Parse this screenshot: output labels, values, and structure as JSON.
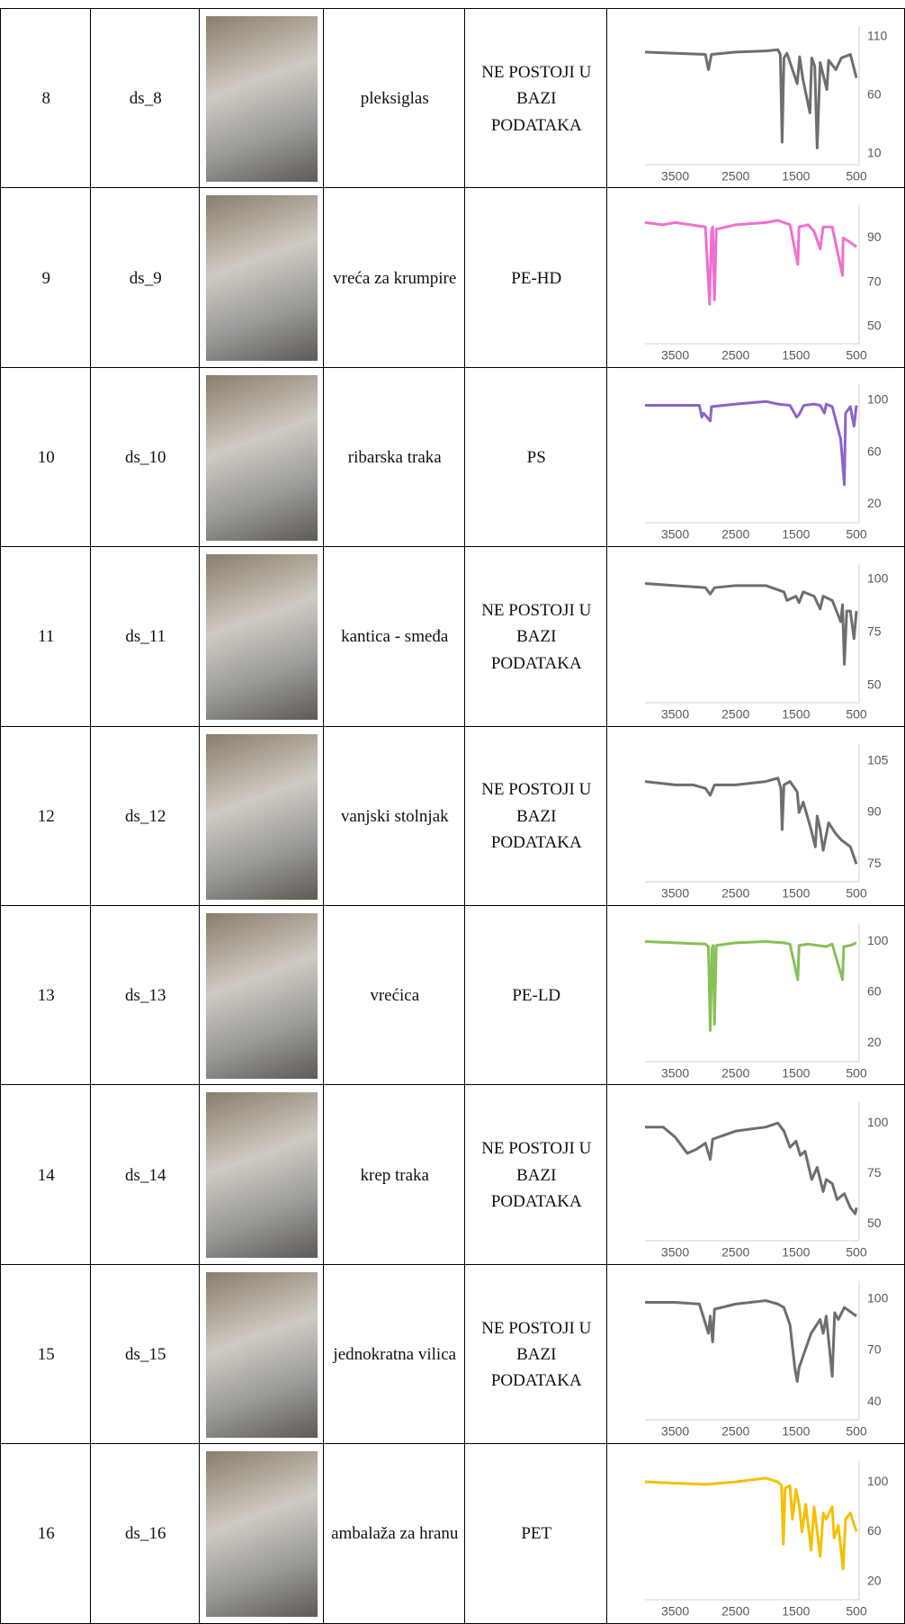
{
  "table": {
    "rows": [
      {
        "number": 8,
        "code": "ds_8",
        "name": "pleksiglas",
        "result": "NE POSTOJI U BAZI PODATAKA"
      },
      {
        "number": 9,
        "code": "ds_9",
        "name": "vreća za krumpire",
        "result": "PE-HD"
      },
      {
        "number": 10,
        "code": "ds_10",
        "name": "ribarska traka",
        "result": "PS"
      },
      {
        "number": 11,
        "code": "ds_11",
        "name": "kantica - smeđa",
        "result": "NE POSTOJI U BAZI PODATAKA"
      },
      {
        "number": 12,
        "code": "ds_12",
        "name": "vanjski stolnjak",
        "result": "NE POSTOJI U BAZI PODATAKA"
      },
      {
        "number": 13,
        "code": "ds_13",
        "name": "vrećica",
        "result": "PE-LD"
      },
      {
        "number": 14,
        "code": "ds_14",
        "name": "krep traka",
        "result": "NE POSTOJI U BAZI PODATAKA"
      },
      {
        "number": 15,
        "code": "ds_15",
        "name": "jednokratna vilica",
        "result": "NE POSTOJI U BAZI PODATAKA"
      },
      {
        "number": 16,
        "code": "ds_16",
        "name": "ambalaža za hranu",
        "result": "PET"
      }
    ]
  },
  "chart_data": [
    {
      "type": "line",
      "x": [
        4000,
        3500,
        3000,
        2950,
        2900,
        2500,
        2000,
        1800,
        1760,
        1730,
        1700,
        1650,
        1480,
        1440,
        1390,
        1270,
        1240,
        1190,
        1150,
        1100,
        990,
        960,
        840,
        750,
        600,
        500
      ],
      "series": [
        {
          "color": "#6e6e6e",
          "values": [
            97,
            96,
            95,
            82,
            95,
            97,
            98,
            99,
            95,
            20,
            92,
            96,
            70,
            93,
            75,
            45,
            92,
            85,
            15,
            88,
            65,
            90,
            82,
            92,
            95,
            75
          ]
        }
      ],
      "xlim": [
        4000,
        500
      ],
      "xticks": [
        3500,
        2500,
        1500,
        500
      ],
      "ylim": [
        10,
        110
      ],
      "yticks": [
        10,
        60,
        110
      ]
    },
    {
      "type": "line",
      "x": [
        4000,
        3700,
        3500,
        3000,
        2930,
        2900,
        2880,
        2850,
        2820,
        2500,
        2000,
        1800,
        1600,
        1470,
        1450,
        1300,
        1200,
        1100,
        1050,
        900,
        730,
        720,
        600,
        500
      ],
      "series": [
        {
          "color": "#f06fcf",
          "values": [
            97,
            96,
            97,
            95,
            60,
            93,
            95,
            62,
            94,
            96,
            97,
            98,
            96,
            78,
            95,
            96,
            93,
            85,
            95,
            95,
            73,
            90,
            88,
            86
          ]
        }
      ],
      "xlim": [
        4000,
        500
      ],
      "xticks": [
        3500,
        2500,
        1500,
        500
      ],
      "ylim": [
        47,
        100
      ],
      "yticks": [
        50,
        70,
        90
      ]
    },
    {
      "type": "line",
      "x": [
        4000,
        3500,
        3100,
        3060,
        3030,
        2920,
        2900,
        2500,
        2000,
        1800,
        1600,
        1490,
        1450,
        1370,
        1200,
        1100,
        1030,
        1000,
        900,
        760,
        700,
        680,
        600,
        540,
        500
      ],
      "series": [
        {
          "color": "#8e63c9",
          "values": [
            96,
            96,
            96,
            87,
            90,
            84,
            95,
            97,
            99,
            97,
            96,
            87,
            89,
            96,
            97,
            96,
            90,
            97,
            95,
            70,
            35,
            90,
            95,
            80,
            96
          ]
        }
      ],
      "xlim": [
        4000,
        500
      ],
      "xticks": [
        3500,
        2500,
        1500,
        500
      ],
      "ylim": [
        14,
        104
      ],
      "yticks": [
        20,
        60,
        100
      ]
    },
    {
      "type": "line",
      "x": [
        4000,
        3500,
        3000,
        2920,
        2850,
        2500,
        2000,
        1700,
        1650,
        1500,
        1450,
        1380,
        1200,
        1100,
        1050,
        900,
        760,
        730,
        700,
        660,
        600,
        540,
        500
      ],
      "series": [
        {
          "color": "#6e6e6e",
          "values": [
            98,
            97,
            96,
            93,
            96,
            97,
            97,
            94,
            90,
            92,
            89,
            94,
            92,
            86,
            92,
            90,
            80,
            88,
            60,
            85,
            85,
            72,
            85
          ]
        }
      ],
      "xlim": [
        4000,
        500
      ],
      "xticks": [
        3500,
        2500,
        1500,
        500
      ],
      "ylim": [
        47,
        102
      ],
      "yticks": [
        50,
        75,
        100
      ]
    },
    {
      "type": "line",
      "x": [
        4000,
        3500,
        3200,
        3000,
        2920,
        2850,
        2500,
        2000,
        1800,
        1750,
        1730,
        1700,
        1600,
        1480,
        1450,
        1380,
        1250,
        1180,
        1150,
        1100,
        1050,
        960,
        850,
        750,
        600,
        500
      ],
      "series": [
        {
          "color": "#6e6e6e",
          "values": [
            99,
            98,
            98,
            97,
            95,
            98,
            98,
            99,
            100,
            97,
            85,
            98,
            99,
            96,
            90,
            93,
            85,
            80,
            89,
            85,
            79,
            87,
            84,
            82,
            80,
            75
          ]
        }
      ],
      "xlim": [
        4000,
        500
      ],
      "xticks": [
        3500,
        2500,
        1500,
        500
      ],
      "ylim": [
        73,
        107
      ],
      "yticks": [
        75,
        90,
        105
      ]
    },
    {
      "type": "line",
      "x": [
        4000,
        3500,
        3000,
        2950,
        2920,
        2890,
        2870,
        2850,
        2820,
        2500,
        2000,
        1700,
        1600,
        1470,
        1450,
        1300,
        1000,
        900,
        730,
        710,
        600,
        500
      ],
      "series": [
        {
          "color": "#88c057",
          "values": [
            100,
            99,
            98,
            96,
            30,
            95,
            97,
            35,
            97,
            99,
            100,
            99,
            98,
            70,
            97,
            98,
            96,
            98,
            70,
            96,
            97,
            99
          ]
        }
      ],
      "xlim": [
        4000,
        500
      ],
      "xticks": [
        3500,
        2500,
        1500,
        500
      ],
      "ylim": [
        14,
        106
      ],
      "yticks": [
        20,
        60,
        100
      ]
    },
    {
      "type": "line",
      "x": [
        4000,
        3700,
        3500,
        3300,
        3150,
        3000,
        2920,
        2880,
        2500,
        2000,
        1800,
        1700,
        1600,
        1500,
        1430,
        1350,
        1240,
        1150,
        1050,
        1000,
        900,
        820,
        700,
        600,
        520,
        500
      ],
      "series": [
        {
          "color": "#6e6e6e",
          "values": [
            98,
            98,
            93,
            85,
            87,
            90,
            82,
            92,
            96,
            98,
            100,
            96,
            88,
            91,
            84,
            86,
            72,
            78,
            66,
            72,
            70,
            62,
            65,
            58,
            55,
            58
          ]
        }
      ],
      "xlim": [
        4000,
        500
      ],
      "xticks": [
        3500,
        2500,
        1500,
        500
      ],
      "ylim": [
        47,
        105
      ],
      "yticks": [
        50,
        75,
        100
      ]
    },
    {
      "type": "line",
      "x": [
        4000,
        3500,
        3100,
        2950,
        2920,
        2880,
        2850,
        2500,
        2000,
        1800,
        1700,
        1600,
        1520,
        1480,
        1450,
        1300,
        1250,
        1100,
        1050,
        1000,
        900,
        860,
        800,
        700,
        500
      ],
      "series": [
        {
          "color": "#6e6e6e",
          "values": [
            98,
            98,
            97,
            80,
            90,
            75,
            94,
            97,
            99,
            97,
            95,
            85,
            60,
            52,
            60,
            75,
            80,
            88,
            80,
            90,
            55,
            92,
            88,
            95,
            90
          ]
        }
      ],
      "xlim": [
        4000,
        500
      ],
      "xticks": [
        3500,
        2500,
        1500,
        500
      ],
      "ylim": [
        36,
        104
      ],
      "yticks": [
        40,
        70,
        100
      ]
    },
    {
      "type": "line",
      "x": [
        4000,
        3500,
        3000,
        2500,
        2000,
        1800,
        1740,
        1710,
        1680,
        1600,
        1560,
        1500,
        1450,
        1400,
        1340,
        1250,
        1200,
        1100,
        1050,
        1000,
        900,
        870,
        800,
        720,
        680,
        600,
        500
      ],
      "series": [
        {
          "color": "#f5c000",
          "values": [
            100,
            99,
            98,
            100,
            103,
            100,
            97,
            50,
            95,
            97,
            70,
            94,
            82,
            60,
            82,
            45,
            80,
            40,
            75,
            70,
            80,
            55,
            65,
            30,
            70,
            75,
            60
          ]
        }
      ],
      "xlim": [
        4000,
        500
      ],
      "xticks": [
        3500,
        2500,
        1500,
        500
      ],
      "ylim": [
        14,
        108
      ],
      "yticks": [
        20,
        60,
        100
      ]
    }
  ]
}
